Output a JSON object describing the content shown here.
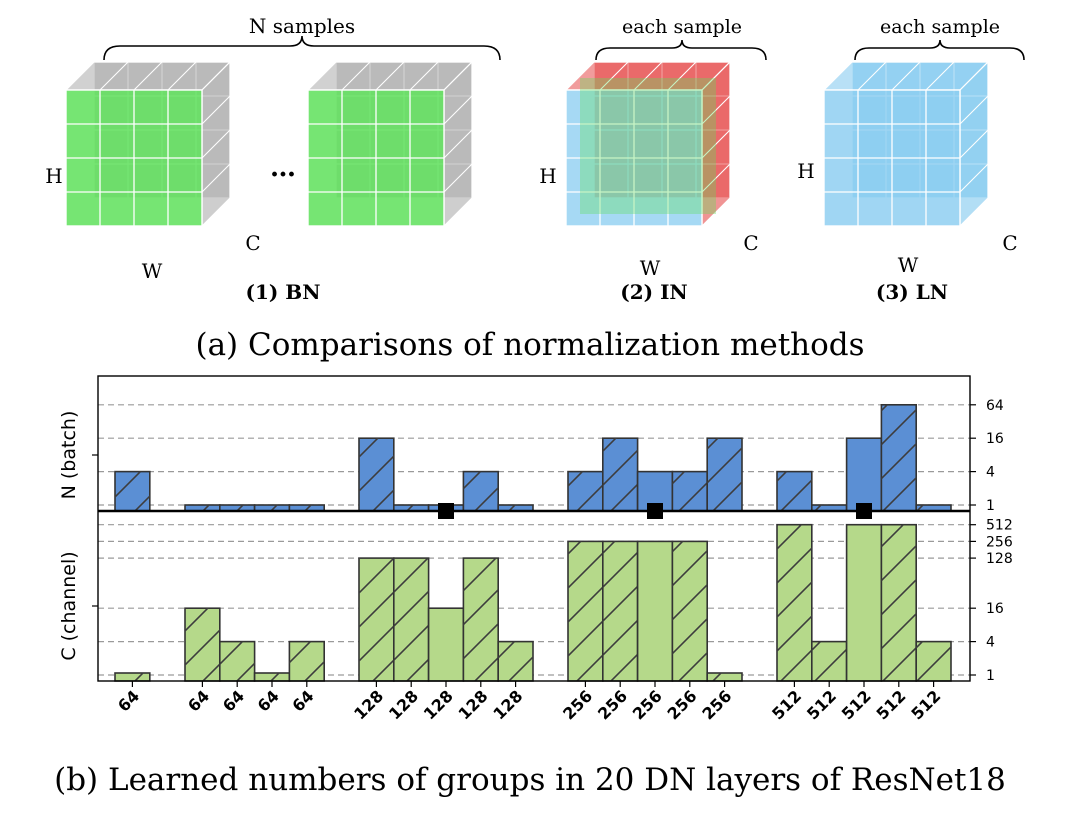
{
  "part_a": {
    "caption": "(a) Comparisons of normalization methods",
    "labels": {
      "n_samples": "N samples",
      "each_sample_in": "each sample",
      "each_sample_ln": "each sample",
      "dots": "…",
      "h_bn": "H",
      "w_bn": "W",
      "c_bn": "C",
      "h_in": "H",
      "w_in": "W",
      "c_in": "C",
      "h_ln": "H",
      "w_ln": "W",
      "c_ln": "C"
    },
    "methods": [
      {
        "label": "(1) BN"
      },
      {
        "label": "(2) IN"
      },
      {
        "label": "(3) LN"
      }
    ],
    "colors": {
      "green": "#5ee05a",
      "gray": "#b3b3b3",
      "blue": "#88ccf0",
      "red": "#e85a5a"
    }
  },
  "part_b": {
    "caption": "(b) Learned numbers of groups in 20 DN layers of ResNet18",
    "n_axis_label": "N (batch)",
    "c_axis_label": "C (channel)"
  },
  "chart_data": {
    "type": "bar",
    "categories": [
      "64",
      "64",
      "64",
      "64",
      "64",
      "128",
      "128",
      "128",
      "128",
      "128",
      "256",
      "256",
      "256",
      "256",
      "256",
      "512",
      "512",
      "512",
      "512",
      "512"
    ],
    "series": [
      {
        "name": "N (batch)",
        "values": [
          4,
          1,
          1,
          1,
          1,
          16,
          1,
          1,
          4,
          1,
          4,
          16,
          4,
          4,
          16,
          4,
          1,
          16,
          64,
          1
        ],
        "markers": [
          false,
          false,
          false,
          false,
          false,
          false,
          false,
          true,
          false,
          false,
          false,
          false,
          true,
          false,
          false,
          false,
          false,
          true,
          false,
          false
        ],
        "color": "#5b8fd4",
        "scale": "log2",
        "yticks": [
          1,
          4,
          16,
          64
        ]
      },
      {
        "name": "C (channel)",
        "values": [
          1,
          16,
          4,
          1,
          4,
          128,
          128,
          16,
          128,
          4,
          256,
          256,
          256,
          256,
          1,
          512,
          4,
          512,
          512,
          4
        ],
        "color": "#b5d98a",
        "scale": "log2",
        "yticks": [
          1,
          4,
          16,
          128,
          256,
          512
        ]
      }
    ],
    "hatched": [
      true,
      true,
      true,
      true,
      true,
      true,
      true,
      false,
      true,
      true,
      true,
      true,
      false,
      true,
      true,
      true,
      true,
      false,
      true,
      true
    ],
    "grid": "dashed horizontal at tick values"
  }
}
